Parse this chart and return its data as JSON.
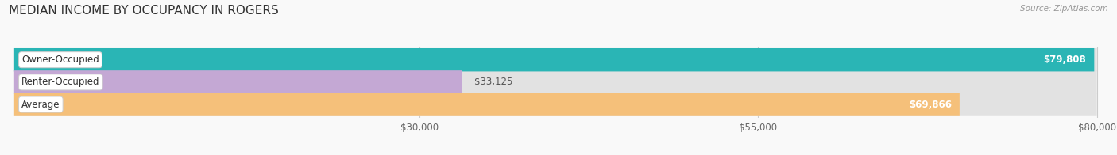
{
  "title": "MEDIAN INCOME BY OCCUPANCY IN ROGERS",
  "source": "Source: ZipAtlas.com",
  "categories": [
    "Owner-Occupied",
    "Renter-Occupied",
    "Average"
  ],
  "values": [
    79808,
    33125,
    69866
  ],
  "bar_colors": [
    "#2ab5b5",
    "#c4a8d4",
    "#f5c07a"
  ],
  "bar_labels": [
    "$79,808",
    "$33,125",
    "$69,866"
  ],
  "xmin": 0,
  "xmax": 80000,
  "xticks": [
    30000,
    55000,
    80000
  ],
  "xtick_labels": [
    "$30,000",
    "$55,000",
    "$80,000"
  ],
  "background_color": "#f9f9f9",
  "bar_bg_color": "#e2e2e2",
  "title_fontsize": 11,
  "label_fontsize": 8.5,
  "tick_fontsize": 8.5
}
